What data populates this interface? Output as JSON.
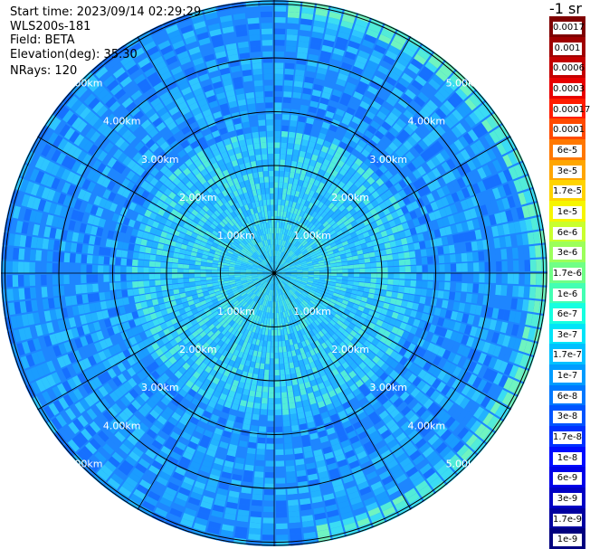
{
  "info": {
    "start_time": "Start time: 2023/09/14 02:29:29",
    "device": "WLS200s-181",
    "field": "Field: BETA",
    "elevation": "Elevation(deg): 35.30",
    "nrays": "NRays: 120"
  },
  "colorbar": {
    "title": "-1 sr",
    "labels": [
      "0.0017",
      "0.001",
      "0.0006",
      "0.0003",
      "0.00017",
      "0.0001",
      "6e-5",
      "3e-5",
      "1.7e-5",
      "1e-5",
      "6e-6",
      "3e-6",
      "1.7e-6",
      "1e-6",
      "6e-7",
      "3e-7",
      "1.7e-7",
      "1e-7",
      "6e-8",
      "3e-8",
      "1.7e-8",
      "1e-8",
      "6e-9",
      "3e-9",
      "1.7e-9",
      "1e-9"
    ],
    "colors": [
      "#7f0000",
      "#a00000",
      "#c40000",
      "#e80000",
      "#ff1c00",
      "#ff4a00",
      "#ff7800",
      "#ffa600",
      "#ffd300",
      "#f6f500",
      "#c9ff2e",
      "#9cff5a",
      "#70ff86",
      "#43ffb3",
      "#16ffe0",
      "#00e4f8",
      "#00c0ff",
      "#009cff",
      "#0078ff",
      "#0054ff",
      "#0030ff",
      "#000cff",
      "#0000e8",
      "#0000c4",
      "#0000a0",
      "#00007f"
    ]
  },
  "chart_data": {
    "type": "heatmap",
    "projection": "polar PPI scan",
    "field": "BETA",
    "elevation_deg": 35.3,
    "n_rays": 120,
    "range_rings_km": [
      1.0,
      2.0,
      3.0,
      4.0,
      5.0
    ],
    "ring_labels": [
      "1.00km",
      "2.00km",
      "3.00km",
      "4.00km",
      "5.00km"
    ],
    "colormap_levels": [
      "0.0017",
      "0.001",
      "0.0006",
      "0.0003",
      "0.00017",
      "0.0001",
      "6e-5",
      "3e-5",
      "1.7e-5",
      "1e-5",
      "6e-6",
      "3e-6",
      "1.7e-6",
      "1e-6",
      "6e-7",
      "3e-7",
      "1.7e-7",
      "1e-7",
      "6e-8",
      "3e-8",
      "1.7e-8",
      "1e-8",
      "6e-9",
      "3e-9",
      "1.7e-9",
      "1e-9"
    ],
    "dominant_level_range": [
      "1e-8",
      "3e-7"
    ],
    "feature_band_km": [
      4.8,
      5.2
    ],
    "feature_band_level": "1.7e-7"
  }
}
